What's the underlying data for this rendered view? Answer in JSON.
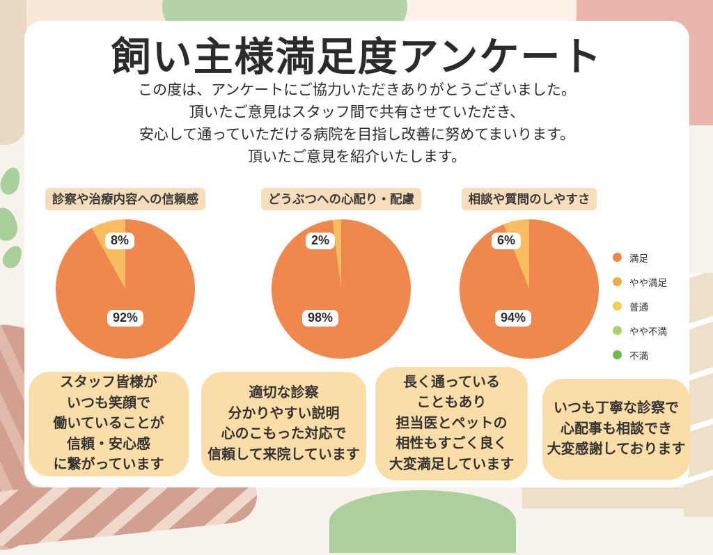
{
  "page": {
    "title": "飼い主様満足度アンケート",
    "intro_lines": [
      "この度は、アンケートにご協力いただきありがとうございました。",
      "頂いたご意見はスタッフ間で共有させていただき、",
      "安心して通っていただける病院を目指し改善に努めてまいります。",
      "頂いたご意見を紹介いたします。"
    ]
  },
  "chart_data": [
    {
      "type": "pie",
      "title": "診察や治療内容への信頼感",
      "labels": [
        "満足",
        "やや満足"
      ],
      "values": [
        92,
        8
      ],
      "value_labels": [
        "92%",
        "8%"
      ],
      "colors": [
        "#f0874d",
        "#fabd60"
      ],
      "start_angle": "12 o'clock",
      "direction": "clockwise"
    },
    {
      "type": "pie",
      "title": "どうぶつへの心配り・配慮",
      "labels": [
        "満足",
        "やや満足"
      ],
      "values": [
        98,
        2
      ],
      "value_labels": [
        "98%",
        "2%"
      ],
      "colors": [
        "#f0874d",
        "#fabd60"
      ],
      "start_angle": "12 o'clock",
      "direction": "clockwise"
    },
    {
      "type": "pie",
      "title": "相談や質問のしやすさ",
      "labels": [
        "満足",
        "やや満足"
      ],
      "values": [
        94,
        6
      ],
      "value_labels": [
        "94%",
        "6%"
      ],
      "colors": [
        "#f0874d",
        "#fabd60"
      ],
      "start_angle": "12 o'clock",
      "direction": "clockwise"
    }
  ],
  "legend": {
    "position": "right",
    "items": [
      {
        "label": "満足",
        "color": "#ee8647"
      },
      {
        "label": "やや満足",
        "color": "#f5a94d"
      },
      {
        "label": "普通",
        "color": "#f2d053"
      },
      {
        "label": "やや不満",
        "color": "#aed06a"
      },
      {
        "label": "不満",
        "color": "#6dbb4f"
      }
    ]
  },
  "comments": [
    {
      "lines": [
        "スタッフ皆様が",
        "いつも笑顔で",
        "働いていることが",
        "信頼・安心感",
        "に繋がっています"
      ]
    },
    {
      "lines": [
        "適切な診察",
        "分かりやすい説明",
        "心のこもった対応で",
        "信頼して来院しています"
      ]
    },
    {
      "lines": [
        "長く通っている",
        "こともあり",
        "担当医とペットの",
        "相性もすごく良く",
        "大変満足しています"
      ]
    },
    {
      "lines": [
        "いつも丁寧な診察で",
        "心配事も相談でき",
        "大変感謝しております"
      ]
    }
  ],
  "colors": {
    "pie_main": "#f0874d",
    "pie_secondary": "#fabd60",
    "comment_box_bg": "#fbdda7",
    "chart_label_bg": "#f6ddbc",
    "card_bg": "#ffffff",
    "page_bg": "#f8f2ec"
  }
}
